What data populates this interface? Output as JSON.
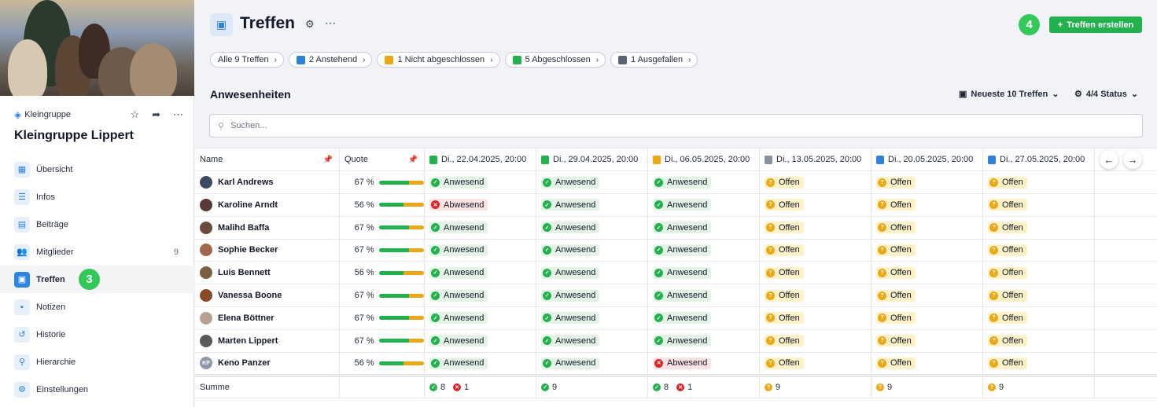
{
  "sidebar": {
    "group_type": "Kleingruppe",
    "group_name": "Kleingruppe Lippert",
    "nav": [
      {
        "label": "Übersicht",
        "icon": "grid-icon"
      },
      {
        "label": "Infos",
        "icon": "list-icon"
      },
      {
        "label": "Beiträge",
        "icon": "posts-icon"
      },
      {
        "label": "Mitglieder",
        "icon": "users-icon",
        "count": "9"
      },
      {
        "label": "Treffen",
        "icon": "calendar-icon",
        "active": true
      },
      {
        "label": "Notizen",
        "icon": "note-icon"
      },
      {
        "label": "Historie",
        "icon": "history-icon"
      },
      {
        "label": "Hierarchie",
        "icon": "hierarchy-icon"
      },
      {
        "label": "Einstellungen",
        "icon": "gear-icon"
      }
    ],
    "step_badge": "3"
  },
  "header": {
    "title": "Treffen",
    "create_label": "Treffen erstellen",
    "step_badge": "4"
  },
  "filters": [
    {
      "label": "Alle 9 Treffen",
      "icon": ""
    },
    {
      "label": "2 Anstehend",
      "icon": "calendar-blue-icon"
    },
    {
      "label": "1 Nicht abgeschlossen",
      "icon": "calendar-yellow-icon"
    },
    {
      "label": "5 Abgeschlossen",
      "icon": "calendar-green-icon"
    },
    {
      "label": "1 Ausgefallen",
      "icon": "calendar-gray-icon"
    }
  ],
  "section": {
    "title": "Anwesenheiten",
    "range_label": "Neueste 10 Treffen",
    "status_label": "4/4 Status"
  },
  "search": {
    "placeholder": "Suchen..."
  },
  "table": {
    "col_name": "Name",
    "col_quote": "Quote",
    "dates": [
      {
        "label": "Di., 22.04.2025, 20:00",
        "color": "#22b14c"
      },
      {
        "label": "Di., 29.04.2025, 20:00",
        "color": "#22b14c"
      },
      {
        "label": "Di., 06.05.2025, 20:00",
        "color": "#eba714"
      },
      {
        "label": "Di., 13.05.2025, 20:00",
        "color": "#8a919c"
      },
      {
        "label": "Di., 20.05.2025, 20:00",
        "color": "#2f80d8"
      },
      {
        "label": "Di., 27.05.2025, 20:00",
        "color": "#2f80d8"
      }
    ],
    "rows": [
      {
        "name": "Karl Andrews",
        "quote": "67 %",
        "pct": 67,
        "status": [
          "a",
          "a",
          "a",
          "o",
          "o",
          "o"
        ]
      },
      {
        "name": "Karoline Arndt",
        "quote": "56 %",
        "pct": 56,
        "status": [
          "x",
          "a",
          "a",
          "o",
          "o",
          "o"
        ]
      },
      {
        "name": "Malihd Baffa",
        "quote": "67 %",
        "pct": 67,
        "status": [
          "a",
          "a",
          "a",
          "o",
          "o",
          "o"
        ]
      },
      {
        "name": "Sophie Becker",
        "quote": "67 %",
        "pct": 67,
        "status": [
          "a",
          "a",
          "a",
          "o",
          "o",
          "o"
        ]
      },
      {
        "name": "Luis Bennett",
        "quote": "56 %",
        "pct": 56,
        "status": [
          "a",
          "a",
          "a",
          "o",
          "o",
          "o"
        ]
      },
      {
        "name": "Vanessa Boone",
        "quote": "67 %",
        "pct": 67,
        "status": [
          "a",
          "a",
          "a",
          "o",
          "o",
          "o"
        ]
      },
      {
        "name": "Elena Böttner",
        "quote": "67 %",
        "pct": 67,
        "status": [
          "a",
          "a",
          "a",
          "o",
          "o",
          "o"
        ]
      },
      {
        "name": "Marten Lippert",
        "quote": "67 %",
        "pct": 67,
        "status": [
          "a",
          "a",
          "a",
          "o",
          "o",
          "o"
        ]
      },
      {
        "name": "Keno Panzer",
        "quote": "56 %",
        "pct": 56,
        "status": [
          "a",
          "a",
          "x",
          "o",
          "o",
          "o"
        ],
        "initials": "KP"
      }
    ],
    "status_labels": {
      "a": "Anwesend",
      "x": "Abwesend",
      "o": "Offen"
    },
    "sum_label": "Summe",
    "sums": [
      [
        {
          "t": "a",
          "n": "8"
        },
        {
          "t": "x",
          "n": "1"
        }
      ],
      [
        {
          "t": "a",
          "n": "9"
        }
      ],
      [
        {
          "t": "a",
          "n": "8"
        },
        {
          "t": "x",
          "n": "1"
        }
      ],
      [
        {
          "t": "o",
          "n": "9"
        }
      ],
      [
        {
          "t": "o",
          "n": "9"
        }
      ],
      [
        {
          "t": "o",
          "n": "9"
        }
      ]
    ]
  }
}
